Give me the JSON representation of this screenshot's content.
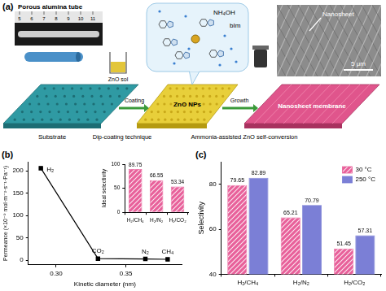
{
  "diagram": {
    "panel_label": "(a)",
    "photo_title": "Porous alumina tube",
    "ruler_labels": [
      "5",
      "6",
      "7",
      "8",
      "9",
      "10",
      "11"
    ],
    "substrate": "Substrate",
    "coating_source": "ZnO sol",
    "coating_arrow": "Coating",
    "coating_method": "Dip-coating technique",
    "intermediate": "ZnO NPs",
    "reagents": [
      "NH₄OH",
      "bIm"
    ],
    "growth_arrow": "Growth",
    "growth_method": "Ammonia-assisted ZnO self-conversion",
    "product": "Nanosheet membrane",
    "sem_label": "Nanosheet",
    "scale_bar": "5 μm"
  },
  "chart_data": [
    {
      "panel_label": "(b)",
      "type": "line",
      "x_label": "Kinetic diameter (nm)",
      "y_label": "Permeance (×10⁻⁹ mol·m⁻²·s⁻¹·Pa⁻¹)",
      "x": [
        0.289,
        0.33,
        0.364,
        0.38
      ],
      "values": [
        205.6,
        3.85,
        3.09,
        2.29
      ],
      "color": "#000000",
      "marker": "square",
      "annotations": [
        {
          "text": "H₂",
          "x": 0.289,
          "y": 205.6
        },
        {
          "text": "CO₂",
          "x": 0.33,
          "y": 3.85
        },
        {
          "text": "N₂",
          "x": 0.364,
          "y": 3.09
        },
        {
          "text": "CH₄",
          "x": 0.38,
          "y": 2.29
        }
      ],
      "xlim": [
        0.28,
        0.39
      ],
      "xticks": [
        {
          "value": 0.3,
          "label": "0.30"
        },
        0.35
      ],
      "ylim": [
        -10,
        220
      ],
      "yticks": [
        0,
        50,
        100,
        150,
        200
      ],
      "grid": false
    },
    {
      "type": "bar",
      "y_label": "Ideal selectivity",
      "categories": [
        "H₂/CH₄",
        "H₂/N₂",
        "H₂/CO₂"
      ],
      "values": [
        89.75,
        66.55,
        53.34
      ],
      "color": "#e8609a",
      "ylim": [
        0,
        100
      ],
      "yticks": [
        0,
        50,
        100
      ],
      "data_labels": true,
      "grid": false
    },
    {
      "panel_label": "(c)",
      "type": "bar",
      "y_label": "Selectivity",
      "categories": [
        "H₂/CH₄",
        "H₂/N₂",
        "H₂/CO₂"
      ],
      "series": [
        {
          "name": "30 °C",
          "color": "#e8609a",
          "values": [
            79.65,
            65.21,
            51.45
          ]
        },
        {
          "name": "250 °C",
          "color": "#7b7fd6",
          "values": [
            82.89,
            70.79,
            57.31
          ]
        }
      ],
      "ylim": [
        40,
        90
      ],
      "yticks": [
        40,
        60,
        80
      ],
      "legend": "upper right",
      "data_labels": true,
      "grid": false
    }
  ]
}
